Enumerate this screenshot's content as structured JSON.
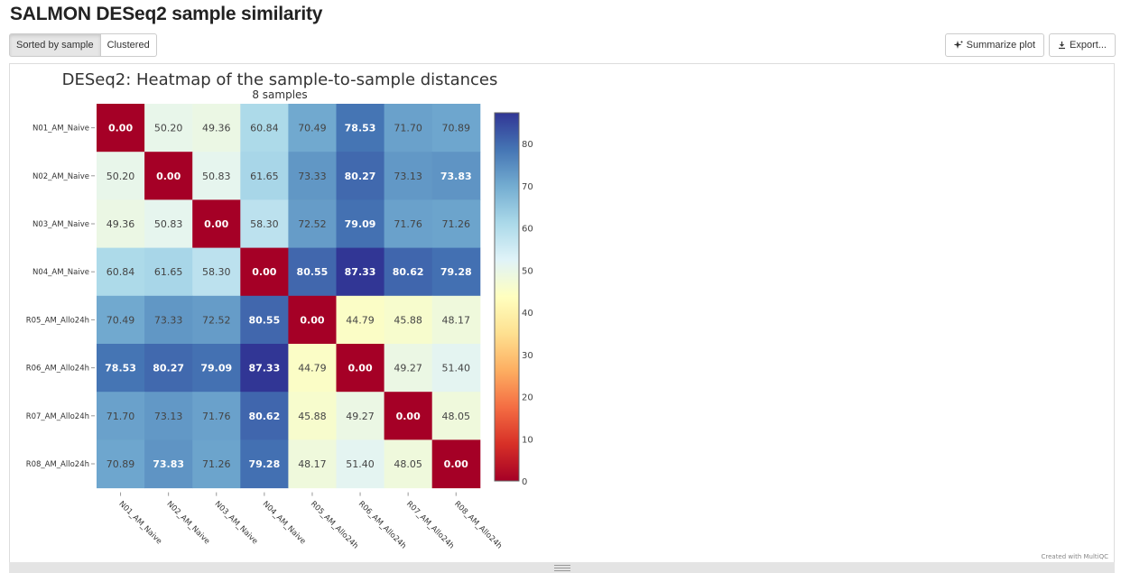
{
  "page": {
    "title": "SALMON DESeq2 sample similarity",
    "toggle_buttons": [
      {
        "label": "Sorted by sample",
        "active": true
      },
      {
        "label": "Clustered",
        "active": false
      }
    ],
    "actions": {
      "summarize_label": "Summarize plot",
      "summarize_icon": "sparkle-icon",
      "export_label": "Export...",
      "export_icon": "download-icon"
    },
    "credit": "Created with MultiQC"
  },
  "chart_data": {
    "type": "heatmap",
    "title": "DESeq2: Heatmap of the sample-to-sample distances",
    "subtitle": "8 samples",
    "xlabel": "",
    "ylabel": "",
    "rows": [
      "N01_AM_Naive",
      "N02_AM_Naive",
      "N03_AM_Naive",
      "N04_AM_Naive",
      "R05_AM_Allo24h",
      "R06_AM_Allo24h",
      "R07_AM_Allo24h",
      "R08_AM_Allo24h"
    ],
    "columns": [
      "N01_AM_Naive",
      "N02_AM_Naive",
      "N03_AM_Naive",
      "N04_AM_Naive",
      "R05_AM_Allo24h",
      "R06_AM_Allo24h",
      "R07_AM_Allo24h",
      "R08_AM_Allo24h"
    ],
    "values": [
      [
        0.0,
        50.2,
        49.36,
        60.84,
        70.49,
        78.53,
        71.7,
        70.89
      ],
      [
        50.2,
        0.0,
        50.83,
        61.65,
        73.33,
        80.27,
        73.13,
        73.83
      ],
      [
        49.36,
        50.83,
        0.0,
        58.3,
        72.52,
        79.09,
        71.76,
        71.26
      ],
      [
        60.84,
        61.65,
        58.3,
        0.0,
        80.55,
        87.33,
        80.62,
        79.28
      ],
      [
        70.49,
        73.33,
        72.52,
        80.55,
        0.0,
        44.79,
        45.88,
        48.17
      ],
      [
        78.53,
        80.27,
        79.09,
        87.33,
        44.79,
        0.0,
        49.27,
        51.4
      ],
      [
        71.7,
        73.13,
        71.76,
        80.62,
        45.88,
        49.27,
        0.0,
        48.05
      ],
      [
        70.89,
        73.83,
        71.26,
        79.28,
        48.17,
        51.4,
        48.05,
        0.0
      ]
    ],
    "value_format": "0.00",
    "colorscale": {
      "name": "RdYlBu",
      "range": [
        0,
        87.33
      ],
      "ticks": [
        0,
        10,
        20,
        30,
        40,
        50,
        60,
        70,
        80
      ],
      "stops": [
        "#a50026",
        "#d73027",
        "#f46d43",
        "#fdae61",
        "#fee090",
        "#ffffbf",
        "#e0f3f8",
        "#abd9e9",
        "#74add1",
        "#4575b4",
        "#313695"
      ]
    },
    "legend": "right"
  }
}
